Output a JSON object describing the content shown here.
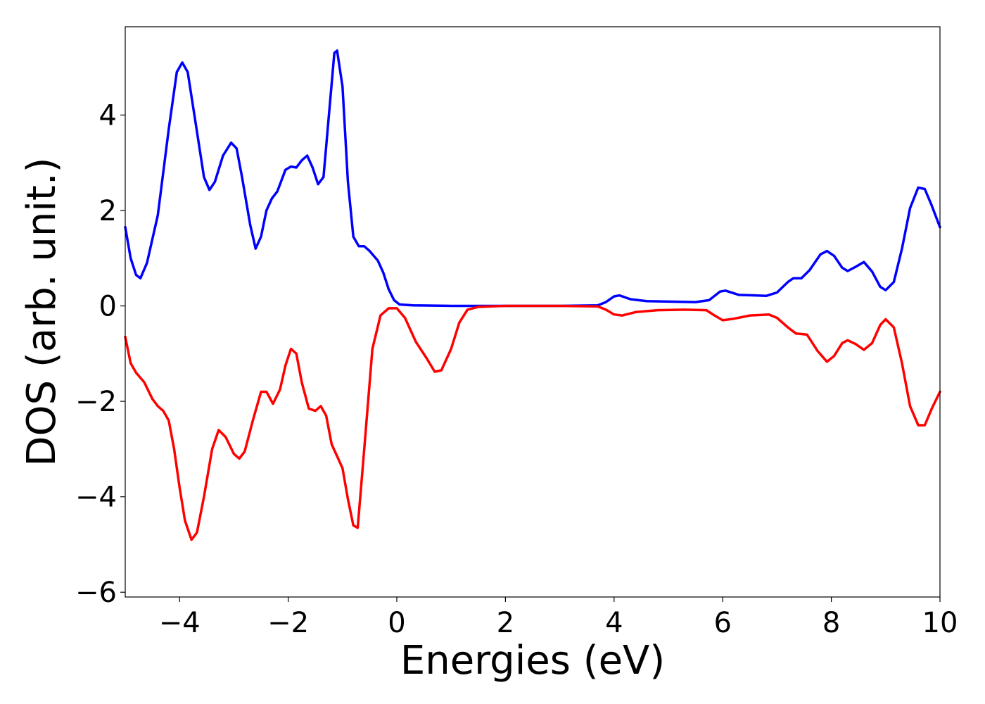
{
  "chart_data": {
    "type": "line",
    "xlabel": "Energies (eV)",
    "ylabel": "DOS (arb. unit.)",
    "xlim": [
      -5,
      10
    ],
    "ylim": [
      -6.1,
      5.85
    ],
    "xticks": [
      -4,
      -2,
      0,
      2,
      4,
      6,
      8,
      10
    ],
    "xtick_labels": [
      "−4",
      "−2",
      "0",
      "2",
      "4",
      "6",
      "8",
      "10"
    ],
    "yticks": [
      -6,
      -4,
      -2,
      0,
      2,
      4
    ],
    "ytick_labels": [
      "−6",
      "−4",
      "−2",
      "0",
      "2",
      "4"
    ],
    "grid": false,
    "series": [
      {
        "color": "#0000ff",
        "points": [
          [
            -5.0,
            1.65
          ],
          [
            -4.9,
            1.0
          ],
          [
            -4.8,
            0.65
          ],
          [
            -4.72,
            0.58
          ],
          [
            -4.6,
            0.9
          ],
          [
            -4.4,
            1.9
          ],
          [
            -4.2,
            3.7
          ],
          [
            -4.05,
            4.9
          ],
          [
            -3.95,
            5.1
          ],
          [
            -3.85,
            4.9
          ],
          [
            -3.7,
            3.8
          ],
          [
            -3.55,
            2.7
          ],
          [
            -3.45,
            2.43
          ],
          [
            -3.35,
            2.6
          ],
          [
            -3.2,
            3.15
          ],
          [
            -3.05,
            3.42
          ],
          [
            -2.95,
            3.3
          ],
          [
            -2.85,
            2.7
          ],
          [
            -2.7,
            1.7
          ],
          [
            -2.6,
            1.2
          ],
          [
            -2.5,
            1.45
          ],
          [
            -2.4,
            2.0
          ],
          [
            -2.3,
            2.25
          ],
          [
            -2.2,
            2.4
          ],
          [
            -2.05,
            2.85
          ],
          [
            -1.95,
            2.92
          ],
          [
            -1.85,
            2.9
          ],
          [
            -1.75,
            3.05
          ],
          [
            -1.65,
            3.15
          ],
          [
            -1.55,
            2.9
          ],
          [
            -1.45,
            2.55
          ],
          [
            -1.35,
            2.7
          ],
          [
            -1.25,
            4.0
          ],
          [
            -1.15,
            5.3
          ],
          [
            -1.1,
            5.35
          ],
          [
            -1.0,
            4.6
          ],
          [
            -0.9,
            2.6
          ],
          [
            -0.8,
            1.45
          ],
          [
            -0.7,
            1.25
          ],
          [
            -0.6,
            1.25
          ],
          [
            -0.5,
            1.15
          ],
          [
            -0.35,
            0.95
          ],
          [
            -0.25,
            0.7
          ],
          [
            -0.15,
            0.35
          ],
          [
            -0.05,
            0.12
          ],
          [
            0.05,
            0.03
          ],
          [
            0.3,
            0.01
          ],
          [
            1.0,
            0.0
          ],
          [
            2.0,
            0.0
          ],
          [
            3.0,
            0.0
          ],
          [
            3.7,
            0.01
          ],
          [
            3.85,
            0.08
          ],
          [
            4.0,
            0.2
          ],
          [
            4.1,
            0.22
          ],
          [
            4.3,
            0.14
          ],
          [
            4.6,
            0.1
          ],
          [
            5.0,
            0.09
          ],
          [
            5.5,
            0.08
          ],
          [
            5.75,
            0.12
          ],
          [
            5.95,
            0.3
          ],
          [
            6.05,
            0.32
          ],
          [
            6.3,
            0.23
          ],
          [
            6.6,
            0.22
          ],
          [
            6.8,
            0.21
          ],
          [
            7.0,
            0.28
          ],
          [
            7.2,
            0.5
          ],
          [
            7.3,
            0.58
          ],
          [
            7.45,
            0.58
          ],
          [
            7.6,
            0.75
          ],
          [
            7.8,
            1.08
          ],
          [
            7.92,
            1.15
          ],
          [
            8.05,
            1.05
          ],
          [
            8.2,
            0.8
          ],
          [
            8.3,
            0.73
          ],
          [
            8.45,
            0.82
          ],
          [
            8.6,
            0.92
          ],
          [
            8.75,
            0.72
          ],
          [
            8.9,
            0.4
          ],
          [
            9.0,
            0.33
          ],
          [
            9.15,
            0.5
          ],
          [
            9.3,
            1.2
          ],
          [
            9.45,
            2.05
          ],
          [
            9.6,
            2.48
          ],
          [
            9.72,
            2.45
          ],
          [
            9.85,
            2.1
          ],
          [
            10.0,
            1.65
          ]
        ]
      },
      {
        "color": "#ff0000",
        "points": [
          [
            -5.0,
            -0.65
          ],
          [
            -4.9,
            -1.2
          ],
          [
            -4.8,
            -1.4
          ],
          [
            -4.65,
            -1.6
          ],
          [
            -4.5,
            -1.95
          ],
          [
            -4.4,
            -2.1
          ],
          [
            -4.3,
            -2.2
          ],
          [
            -4.2,
            -2.4
          ],
          [
            -4.1,
            -3.0
          ],
          [
            -4.0,
            -3.8
          ],
          [
            -3.9,
            -4.5
          ],
          [
            -3.78,
            -4.9
          ],
          [
            -3.68,
            -4.75
          ],
          [
            -3.55,
            -4.0
          ],
          [
            -3.4,
            -3.0
          ],
          [
            -3.28,
            -2.6
          ],
          [
            -3.15,
            -2.75
          ],
          [
            -3.0,
            -3.1
          ],
          [
            -2.9,
            -3.2
          ],
          [
            -2.8,
            -3.05
          ],
          [
            -2.65,
            -2.4
          ],
          [
            -2.5,
            -1.8
          ],
          [
            -2.4,
            -1.8
          ],
          [
            -2.28,
            -2.05
          ],
          [
            -2.15,
            -1.75
          ],
          [
            -2.05,
            -1.25
          ],
          [
            -1.95,
            -0.9
          ],
          [
            -1.85,
            -1.0
          ],
          [
            -1.75,
            -1.6
          ],
          [
            -1.62,
            -2.15
          ],
          [
            -1.5,
            -2.2
          ],
          [
            -1.4,
            -2.1
          ],
          [
            -1.3,
            -2.3
          ],
          [
            -1.2,
            -2.9
          ],
          [
            -1.1,
            -3.15
          ],
          [
            -1.0,
            -3.4
          ],
          [
            -0.9,
            -4.05
          ],
          [
            -0.8,
            -4.6
          ],
          [
            -0.72,
            -4.65
          ],
          [
            -0.6,
            -3.0
          ],
          [
            -0.45,
            -0.9
          ],
          [
            -0.3,
            -0.2
          ],
          [
            -0.15,
            -0.05
          ],
          [
            0.0,
            -0.05
          ],
          [
            0.15,
            -0.25
          ],
          [
            0.35,
            -0.75
          ],
          [
            0.55,
            -1.1
          ],
          [
            0.7,
            -1.38
          ],
          [
            0.82,
            -1.35
          ],
          [
            1.0,
            -0.9
          ],
          [
            1.15,
            -0.35
          ],
          [
            1.3,
            -0.08
          ],
          [
            1.5,
            -0.02
          ],
          [
            2.0,
            0.0
          ],
          [
            3.0,
            0.0
          ],
          [
            3.7,
            -0.01
          ],
          [
            3.85,
            -0.08
          ],
          [
            4.0,
            -0.18
          ],
          [
            4.15,
            -0.2
          ],
          [
            4.4,
            -0.13
          ],
          [
            4.8,
            -0.09
          ],
          [
            5.3,
            -0.08
          ],
          [
            5.7,
            -0.09
          ],
          [
            5.85,
            -0.2
          ],
          [
            6.0,
            -0.3
          ],
          [
            6.2,
            -0.27
          ],
          [
            6.5,
            -0.2
          ],
          [
            6.85,
            -0.18
          ],
          [
            7.0,
            -0.25
          ],
          [
            7.2,
            -0.45
          ],
          [
            7.35,
            -0.58
          ],
          [
            7.55,
            -0.6
          ],
          [
            7.75,
            -0.95
          ],
          [
            7.92,
            -1.17
          ],
          [
            8.05,
            -1.05
          ],
          [
            8.2,
            -0.78
          ],
          [
            8.3,
            -0.72
          ],
          [
            8.45,
            -0.8
          ],
          [
            8.6,
            -0.92
          ],
          [
            8.75,
            -0.78
          ],
          [
            8.9,
            -0.4
          ],
          [
            9.0,
            -0.28
          ],
          [
            9.15,
            -0.45
          ],
          [
            9.3,
            -1.2
          ],
          [
            9.45,
            -2.1
          ],
          [
            9.6,
            -2.5
          ],
          [
            9.72,
            -2.5
          ],
          [
            9.85,
            -2.15
          ],
          [
            10.0,
            -1.8
          ]
        ]
      }
    ]
  }
}
